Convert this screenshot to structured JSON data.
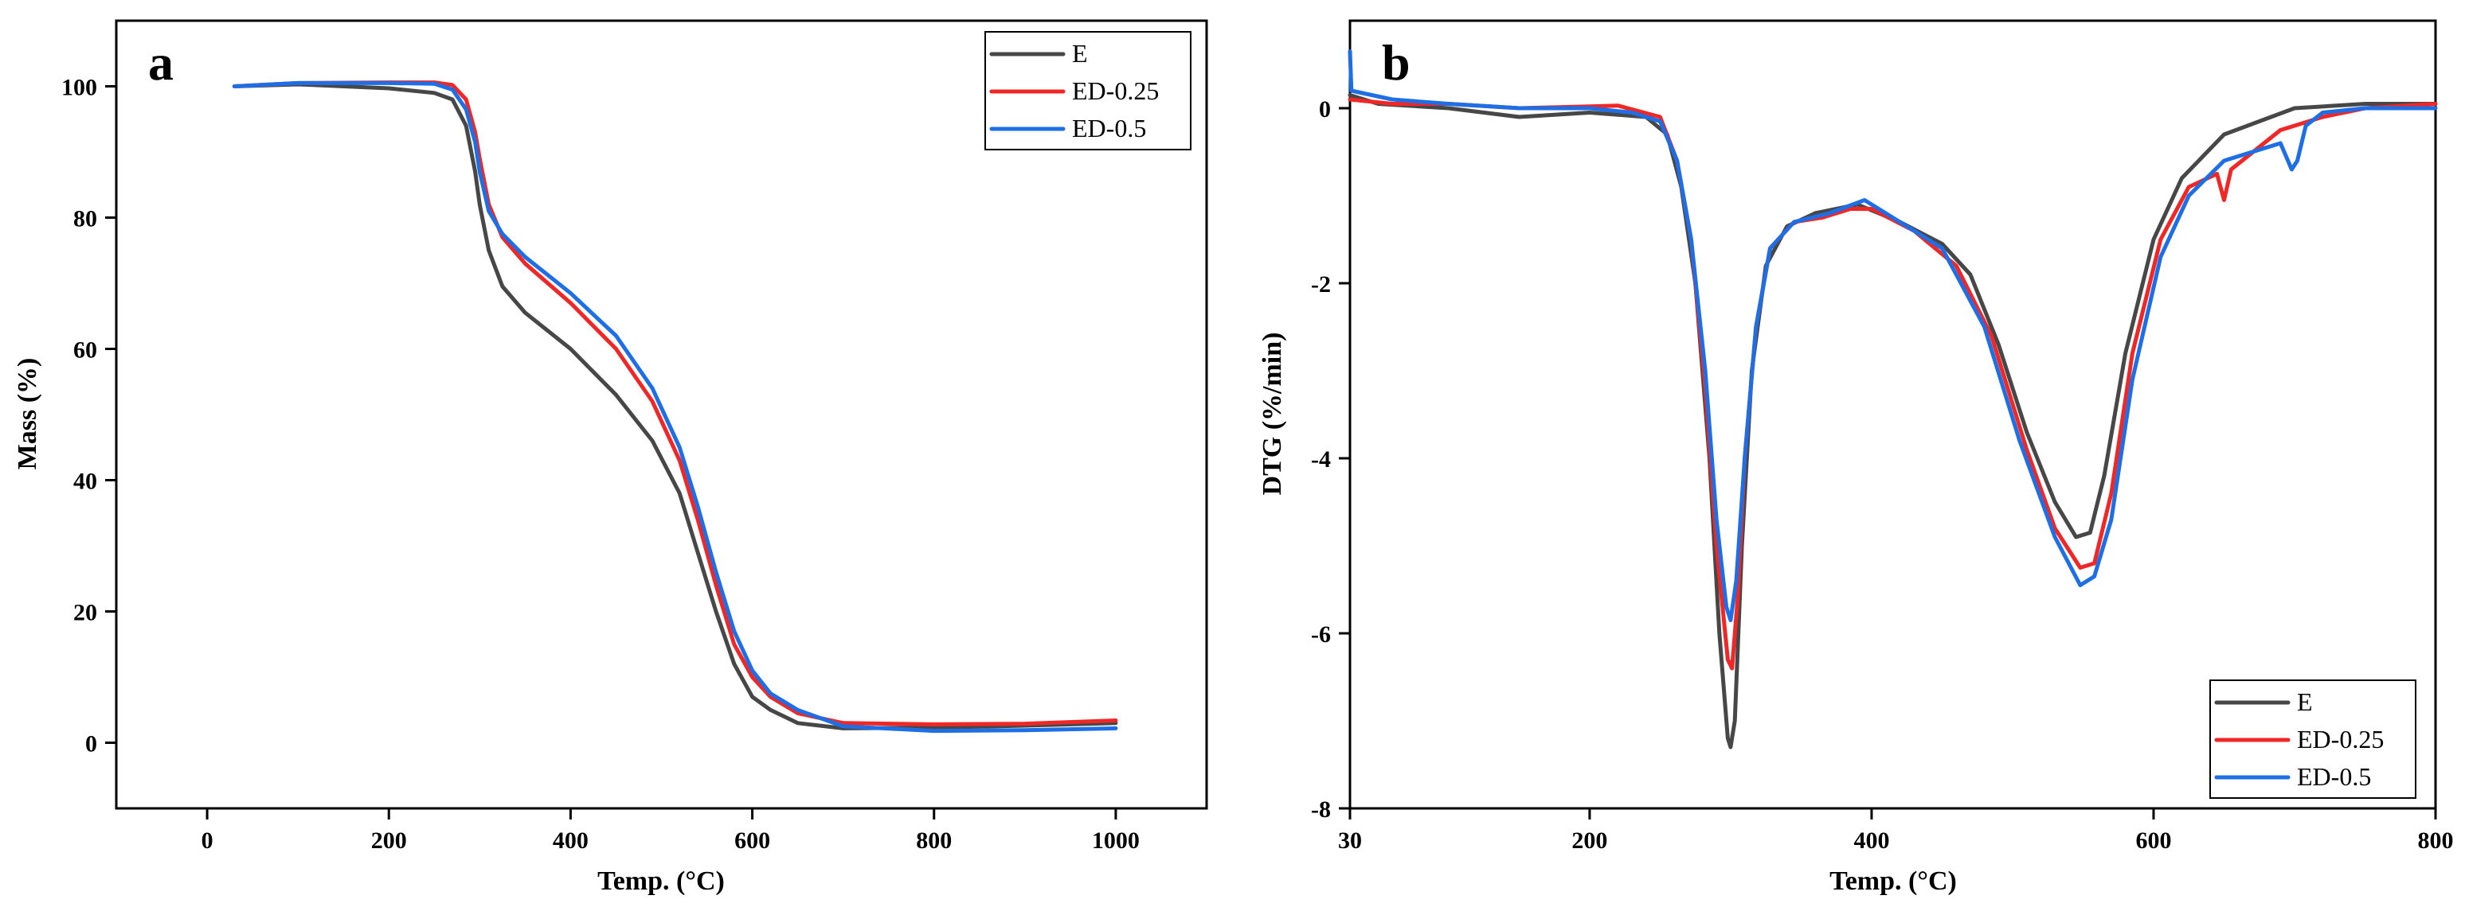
{
  "chart_data": [
    {
      "id": "a",
      "type": "line",
      "panel_label": "a",
      "xlabel": "Temp. (°C)",
      "ylabel": "Mass (%)",
      "xlim": [
        -100,
        1100
      ],
      "ylim": [
        -10,
        110
      ],
      "xticks": [
        0,
        200,
        400,
        600,
        800,
        1000
      ],
      "yticks": [
        0,
        20,
        40,
        60,
        80,
        100
      ],
      "legend_position": "top-right",
      "series": [
        {
          "name": "E",
          "color": "#474747",
          "points": [
            [
              30,
              100
            ],
            [
              100,
              100.3
            ],
            [
              200,
              99.7
            ],
            [
              250,
              99
            ],
            [
              270,
              98
            ],
            [
              285,
              94
            ],
            [
              295,
              87
            ],
            [
              300,
              82
            ],
            [
              310,
              75
            ],
            [
              325,
              69.5
            ],
            [
              350,
              65.5
            ],
            [
              400,
              60
            ],
            [
              450,
              53
            ],
            [
              490,
              46
            ],
            [
              520,
              38
            ],
            [
              540,
              29
            ],
            [
              560,
              20
            ],
            [
              580,
              12
            ],
            [
              600,
              7
            ],
            [
              620,
              5
            ],
            [
              650,
              3
            ],
            [
              700,
              2.2
            ],
            [
              800,
              2.3
            ],
            [
              900,
              2.6
            ],
            [
              1000,
              3
            ]
          ]
        },
        {
          "name": "ED-0.25",
          "color": "#f02727",
          "points": [
            [
              30,
              100
            ],
            [
              100,
              100.5
            ],
            [
              200,
              100.6
            ],
            [
              250,
              100.6
            ],
            [
              270,
              100.2
            ],
            [
              285,
              98
            ],
            [
              295,
              93
            ],
            [
              300,
              89
            ],
            [
              310,
              82
            ],
            [
              325,
              77
            ],
            [
              350,
              73
            ],
            [
              400,
              67
            ],
            [
              450,
              60
            ],
            [
              490,
              52
            ],
            [
              520,
              43
            ],
            [
              540,
              34
            ],
            [
              560,
              24
            ],
            [
              580,
              15
            ],
            [
              600,
              10
            ],
            [
              620,
              7
            ],
            [
              650,
              4.5
            ],
            [
              700,
              3
            ],
            [
              800,
              2.8
            ],
            [
              900,
              2.9
            ],
            [
              1000,
              3.4
            ]
          ]
        },
        {
          "name": "ED-0.5",
          "color": "#1e6ee6",
          "points": [
            [
              30,
              100
            ],
            [
              100,
              100.5
            ],
            [
              200,
              100.5
            ],
            [
              250,
              100.4
            ],
            [
              270,
              99.5
            ],
            [
              285,
              96.5
            ],
            [
              295,
              91.5
            ],
            [
              300,
              87
            ],
            [
              310,
              81
            ],
            [
              325,
              77.5
            ],
            [
              350,
              74
            ],
            [
              400,
              68.5
            ],
            [
              450,
              62
            ],
            [
              490,
              54
            ],
            [
              520,
              45
            ],
            [
              540,
              36
            ],
            [
              560,
              26
            ],
            [
              580,
              17
            ],
            [
              600,
              11
            ],
            [
              620,
              7.5
            ],
            [
              650,
              5
            ],
            [
              700,
              2.5
            ],
            [
              800,
              1.8
            ],
            [
              900,
              1.9
            ],
            [
              1000,
              2.2
            ]
          ]
        }
      ]
    },
    {
      "id": "b",
      "type": "line",
      "panel_label": "b",
      "xlabel": "Temp. (°C)",
      "ylabel": "DTG (%/min)",
      "xlim": [
        30,
        800
      ],
      "ylim": [
        -8,
        1
      ],
      "xticks": [
        30,
        200,
        400,
        600,
        800
      ],
      "yticks": [
        -8,
        -6,
        -4,
        -2,
        0
      ],
      "legend_position": "bottom-right",
      "series": [
        {
          "name": "E",
          "color": "#474747",
          "points": [
            [
              30,
              0.15
            ],
            [
              50,
              0.05
            ],
            [
              100,
              0
            ],
            [
              150,
              -0.1
            ],
            [
              200,
              -0.05
            ],
            [
              240,
              -0.1
            ],
            [
              255,
              -0.3
            ],
            [
              265,
              -0.9
            ],
            [
              275,
              -2
            ],
            [
              285,
              -4
            ],
            [
              292,
              -6
            ],
            [
              298,
              -7.2
            ],
            [
              300,
              -7.3
            ],
            [
              303,
              -7
            ],
            [
              308,
              -5
            ],
            [
              315,
              -3
            ],
            [
              325,
              -1.8
            ],
            [
              340,
              -1.35
            ],
            [
              360,
              -1.2
            ],
            [
              390,
              -1.1
            ],
            [
              420,
              -1.3
            ],
            [
              450,
              -1.55
            ],
            [
              470,
              -1.9
            ],
            [
              490,
              -2.7
            ],
            [
              510,
              -3.7
            ],
            [
              530,
              -4.5
            ],
            [
              545,
              -4.9
            ],
            [
              555,
              -4.85
            ],
            [
              565,
              -4.2
            ],
            [
              580,
              -2.8
            ],
            [
              600,
              -1.5
            ],
            [
              620,
              -0.8
            ],
            [
              650,
              -0.3
            ],
            [
              700,
              0
            ],
            [
              750,
              0.05
            ],
            [
              800,
              0.05
            ]
          ]
        },
        {
          "name": "ED-0.25",
          "color": "#f02727",
          "points": [
            [
              30,
              0.1
            ],
            [
              60,
              0.05
            ],
            [
              100,
              0.05
            ],
            [
              150,
              0
            ],
            [
              200,
              0.02
            ],
            [
              220,
              0.03
            ],
            [
              250,
              -0.1
            ],
            [
              262,
              -0.6
            ],
            [
              272,
              -1.5
            ],
            [
              282,
              -3.2
            ],
            [
              290,
              -5
            ],
            [
              298,
              -6.3
            ],
            [
              301,
              -6.4
            ],
            [
              305,
              -5.6
            ],
            [
              310,
              -4
            ],
            [
              318,
              -2.5
            ],
            [
              328,
              -1.6
            ],
            [
              345,
              -1.3
            ],
            [
              365,
              -1.25
            ],
            [
              385,
              -1.15
            ],
            [
              400,
              -1.15
            ],
            [
              430,
              -1.4
            ],
            [
              460,
              -1.8
            ],
            [
              485,
              -2.6
            ],
            [
              510,
              -3.9
            ],
            [
              530,
              -4.8
            ],
            [
              548,
              -5.25
            ],
            [
              558,
              -5.2
            ],
            [
              570,
              -4.4
            ],
            [
              585,
              -2.8
            ],
            [
              605,
              -1.5
            ],
            [
              625,
              -0.9
            ],
            [
              645,
              -0.75
            ],
            [
              650,
              -1.05
            ],
            [
              655,
              -0.7
            ],
            [
              690,
              -0.25
            ],
            [
              720,
              -0.1
            ],
            [
              750,
              0
            ],
            [
              800,
              0.05
            ]
          ]
        },
        {
          "name": "ED-0.5",
          "color": "#1e6ee6",
          "points": [
            [
              30,
              0.65
            ],
            [
              31,
              0.2
            ],
            [
              60,
              0.1
            ],
            [
              100,
              0.05
            ],
            [
              150,
              0
            ],
            [
              200,
              0
            ],
            [
              230,
              -0.05
            ],
            [
              250,
              -0.15
            ],
            [
              262,
              -0.6
            ],
            [
              272,
              -1.5
            ],
            [
              282,
              -3
            ],
            [
              290,
              -4.7
            ],
            [
              297,
              -5.7
            ],
            [
              300,
              -5.85
            ],
            [
              304,
              -5.4
            ],
            [
              310,
              -4
            ],
            [
              318,
              -2.5
            ],
            [
              328,
              -1.6
            ],
            [
              345,
              -1.3
            ],
            [
              370,
              -1.2
            ],
            [
              395,
              -1.05
            ],
            [
              420,
              -1.3
            ],
            [
              450,
              -1.6
            ],
            [
              480,
              -2.5
            ],
            [
              505,
              -3.8
            ],
            [
              530,
              -4.9
            ],
            [
              548,
              -5.45
            ],
            [
              558,
              -5.35
            ],
            [
              570,
              -4.7
            ],
            [
              585,
              -3.1
            ],
            [
              605,
              -1.7
            ],
            [
              625,
              -1
            ],
            [
              650,
              -0.6
            ],
            [
              690,
              -0.4
            ],
            [
              698,
              -0.7
            ],
            [
              702,
              -0.6
            ],
            [
              708,
              -0.2
            ],
            [
              720,
              -0.05
            ],
            [
              750,
              0
            ],
            [
              800,
              0
            ]
          ]
        }
      ]
    }
  ]
}
